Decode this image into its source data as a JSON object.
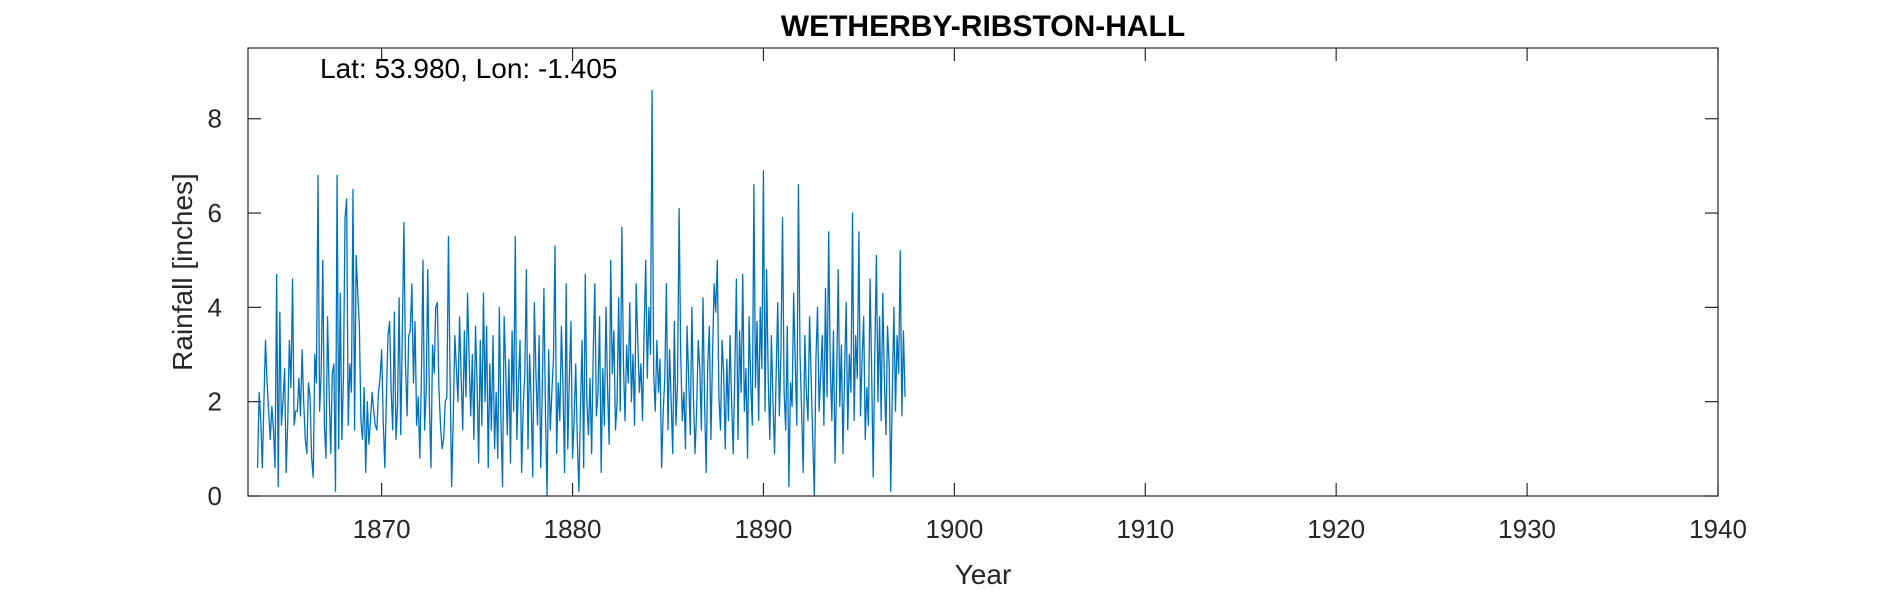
{
  "chart_data": {
    "type": "line",
    "title": "WETHERBY-RIBSTON-HALL",
    "xlabel": "Year",
    "ylabel": "Rainfall [inches]",
    "annotation": "Lat: 53.980, Lon: -1.405",
    "xlim": [
      1863,
      1940
    ],
    "ylim": [
      0,
      9.5
    ],
    "xticks": [
      1870,
      1880,
      1890,
      1900,
      1910,
      1920,
      1930,
      1940
    ],
    "yticks": [
      0,
      2,
      4,
      6,
      8
    ],
    "grid": false,
    "line_color": "#0072BD",
    "series": [
      {
        "start_year": 1863.5,
        "step_years": 0.08333,
        "values": [
          0.6,
          2.2,
          1.6,
          0.6,
          2.0,
          3.3,
          2.4,
          1.8,
          1.2,
          1.9,
          1.4,
          0.6,
          4.7,
          0.2,
          3.9,
          1.5,
          2.0,
          2.7,
          0.5,
          1.6,
          3.3,
          2.3,
          4.6,
          1.5,
          1.8,
          1.8,
          2.5,
          1.7,
          3.1,
          2.0,
          1.2,
          0.9,
          2.4,
          2.1,
          0.8,
          0.4,
          3.0,
          2.4,
          6.8,
          1.8,
          2.6,
          5.0,
          1.5,
          0.8,
          3.8,
          2.2,
          0.9,
          2.6,
          2.8,
          0.1,
          6.8,
          1.0,
          4.3,
          1.2,
          2.5,
          5.9,
          6.3,
          1.5,
          2.8,
          2.2,
          6.5,
          1.4,
          5.1,
          4.3,
          3.6,
          1.6,
          1.2,
          2.3,
          0.5,
          2.0,
          1.1,
          1.6,
          2.2,
          1.8,
          1.5,
          1.4,
          2.2,
          2.5,
          3.1,
          1.6,
          0.6,
          2.1,
          3.4,
          3.7,
          2.2,
          1.4,
          3.9,
          1.2,
          1.9,
          4.2,
          1.3,
          3.4,
          5.8,
          2.8,
          1.7,
          3.4,
          3.5,
          4.5,
          2.4,
          3.7,
          1.5,
          2.1,
          0.8,
          2.5,
          5.0,
          1.4,
          2.2,
          4.8,
          2.0,
          0.6,
          3.2,
          2.6,
          4.0,
          4.1,
          2.3,
          1.5,
          1.0,
          1.2,
          2.0,
          2.1,
          5.5,
          2.6,
          0.2,
          1.6,
          3.4,
          2.7,
          2.0,
          3.8,
          2.5,
          1.4,
          3.5,
          2.1,
          4.3,
          2.9,
          1.7,
          3.0,
          1.2,
          3.6,
          2.4,
          0.7,
          3.3,
          1.5,
          4.3,
          2.0,
          3.6,
          0.6,
          2.8,
          1.4,
          3.4,
          1.0,
          2.2,
          0.8,
          4.0,
          1.6,
          0.2,
          3.8,
          2.7,
          1.3,
          2.9,
          0.7,
          3.5,
          1.8,
          5.5,
          1.2,
          2.4,
          3.3,
          0.5,
          1.9,
          2.6,
          4.8,
          1.0,
          3.0,
          2.0,
          0.4,
          4.1,
          2.6,
          1.5,
          3.4,
          0.6,
          2.3,
          4.4,
          1.7,
          0.0,
          3.1,
          1.4,
          2.2,
          2.9,
          5.3,
          0.9,
          2.4,
          1.6,
          3.6,
          2.3,
          0.5,
          4.5,
          1.0,
          2.5,
          3.7,
          0.8,
          1.6,
          2.8,
          1.2,
          0.1,
          1.9,
          3.3,
          0.6,
          4.7,
          2.0,
          1.3,
          2.5,
          0.9,
          3.0,
          4.5,
          1.7,
          2.2,
          3.8,
          0.5,
          2.7,
          1.5,
          4.0,
          2.3,
          1.1,
          5.0,
          2.6,
          3.5,
          1.4,
          2.0,
          4.2,
          1.8,
          5.7,
          2.8,
          1.6,
          3.2,
          2.4,
          4.1,
          2.0,
          3.0,
          1.5,
          4.5,
          3.3,
          2.2,
          2.8,
          1.6,
          3.5,
          5.0,
          2.5,
          4.0,
          3.0,
          8.6,
          2.6,
          1.8,
          3.3,
          2.2,
          2.9,
          0.6,
          1.8,
          2.5,
          4.5,
          1.4,
          3.1,
          2.0,
          0.9,
          3.7,
          1.5,
          2.4,
          6.1,
          3.0,
          1.6,
          2.2,
          1.0,
          3.6,
          2.5,
          1.3,
          4.0,
          2.1,
          0.9,
          1.8,
          3.3,
          2.7,
          1.4,
          4.2,
          2.0,
          0.5,
          2.8,
          3.6,
          1.2,
          3.0,
          4.5,
          3.9,
          5.0,
          2.1,
          1.4,
          3.3,
          2.6,
          1.0,
          2.9,
          1.6,
          3.4,
          2.0,
          0.9,
          2.6,
          4.6,
          1.2,
          3.5,
          2.2,
          4.7,
          1.8,
          2.7,
          0.8,
          3.8,
          2.4,
          1.5,
          6.6,
          2.3,
          3.7,
          1.6,
          4.0,
          2.7,
          6.9,
          1.8,
          4.8,
          2.5,
          1.2,
          3.4,
          2.0,
          0.9,
          2.6,
          4.1,
          1.7,
          3.0,
          5.9,
          2.2,
          1.4,
          3.6,
          0.2,
          2.4,
          1.9,
          4.3,
          2.8,
          1.5,
          6.6,
          3.0,
          1.8,
          0.5,
          3.4,
          2.2,
          1.6,
          3.8,
          2.5,
          1.2,
          0.0,
          2.9,
          4.0,
          1.8,
          2.6,
          3.4,
          1.5,
          4.4,
          2.1,
          5.6,
          2.8,
          1.6,
          3.5,
          0.7,
          2.4,
          4.8,
          1.9,
          3.2,
          0.9,
          2.6,
          4.1,
          1.4,
          3.0,
          2.2,
          6.0,
          1.6,
          3.4,
          2.5,
          5.6,
          1.7,
          2.9,
          3.8,
          1.2,
          2.3,
          1.5,
          4.6,
          2.7,
          0.4,
          3.0,
          5.1,
          2.0,
          3.8,
          1.6,
          4.3,
          2.5,
          1.3,
          3.6,
          2.8,
          0.1,
          2.2,
          4.0,
          1.8,
          3.4,
          2.6,
          5.2,
          1.7,
          3.5,
          2.1
        ]
      }
    ]
  }
}
